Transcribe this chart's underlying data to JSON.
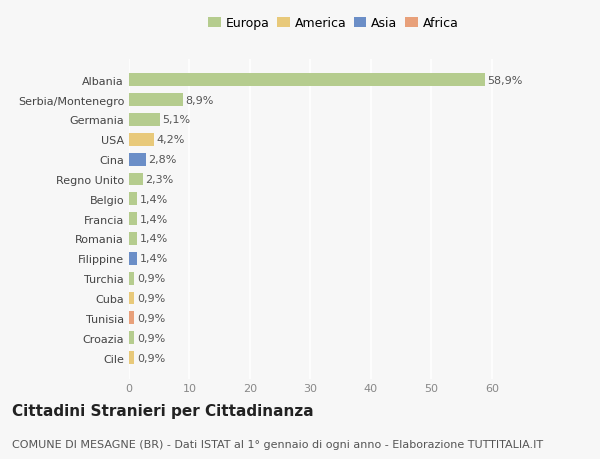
{
  "categories": [
    "Cile",
    "Croazia",
    "Tunisia",
    "Cuba",
    "Turchia",
    "Filippine",
    "Romania",
    "Francia",
    "Belgio",
    "Regno Unito",
    "Cina",
    "USA",
    "Germania",
    "Serbia/Montenegro",
    "Albania"
  ],
  "values": [
    0.9,
    0.9,
    0.9,
    0.9,
    0.9,
    1.4,
    1.4,
    1.4,
    1.4,
    2.3,
    2.8,
    4.2,
    5.1,
    8.9,
    58.9
  ],
  "colors": [
    "#e8c97a",
    "#b5cc8e",
    "#e8a07a",
    "#e8c97a",
    "#b5cc8e",
    "#6b8ec7",
    "#b5cc8e",
    "#b5cc8e",
    "#b5cc8e",
    "#b5cc8e",
    "#6b8ec7",
    "#e8c97a",
    "#b5cc8e",
    "#b5cc8e",
    "#b5cc8e"
  ],
  "labels": [
    "0,9%",
    "0,9%",
    "0,9%",
    "0,9%",
    "0,9%",
    "1,4%",
    "1,4%",
    "1,4%",
    "1,4%",
    "2,3%",
    "2,8%",
    "4,2%",
    "5,1%",
    "8,9%",
    "58,9%"
  ],
  "xlim": [
    0,
    65
  ],
  "xticks": [
    0,
    10,
    20,
    30,
    40,
    50,
    60
  ],
  "legend_labels": [
    "Europa",
    "America",
    "Asia",
    "Africa"
  ],
  "legend_colors": [
    "#b5cc8e",
    "#e8c97a",
    "#6b8ec7",
    "#e8a07a"
  ],
  "title": "Cittadini Stranieri per Cittadinanza",
  "subtitle": "COMUNE DI MESAGNE (BR) - Dati ISTAT al 1° gennaio di ogni anno - Elaborazione TUTTITALIA.IT",
  "bg_color": "#f7f7f7",
  "bar_height": 0.65,
  "title_fontsize": 11,
  "subtitle_fontsize": 8,
  "label_fontsize": 8,
  "tick_fontsize": 8,
  "legend_fontsize": 9
}
